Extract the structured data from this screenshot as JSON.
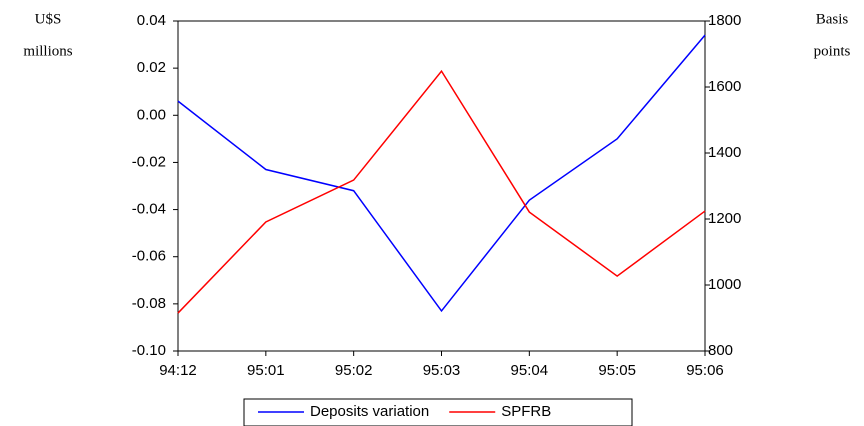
{
  "chart_data": {
    "type": "line",
    "y_label": [
      "U$S",
      "millions"
    ],
    "y2_label": [
      "Basis",
      "points"
    ],
    "categories": [
      "94:12",
      "95:01",
      "95:02",
      "95:03",
      "95:04",
      "95:05",
      "95:06"
    ],
    "series": [
      {
        "name": "Deposits variation",
        "color": "#0000ff",
        "values": [
          0.006,
          -0.023,
          -0.032,
          -0.083,
          -0.036,
          -0.01,
          0.034
        ]
      },
      {
        "name": "SPFRB",
        "color": "#ff0000",
        "axis": "y2",
        "values": [
          915,
          1191,
          1318,
          1648,
          1221,
          1027,
          1224
        ]
      }
    ],
    "ylim": [
      -0.1,
      0.04
    ],
    "yticks": [
      {
        "value": -0.1,
        "label": "-0.10"
      },
      -0.08,
      -0.06,
      -0.04,
      -0.02,
      {
        "value": 0,
        "label": "0.00"
      },
      0.02,
      0.04
    ],
    "y2lim": [
      800,
      1800
    ],
    "y2ticks": [
      800,
      1000,
      1200,
      1400,
      1600,
      1800
    ],
    "grid": false,
    "legend": "bottom"
  }
}
